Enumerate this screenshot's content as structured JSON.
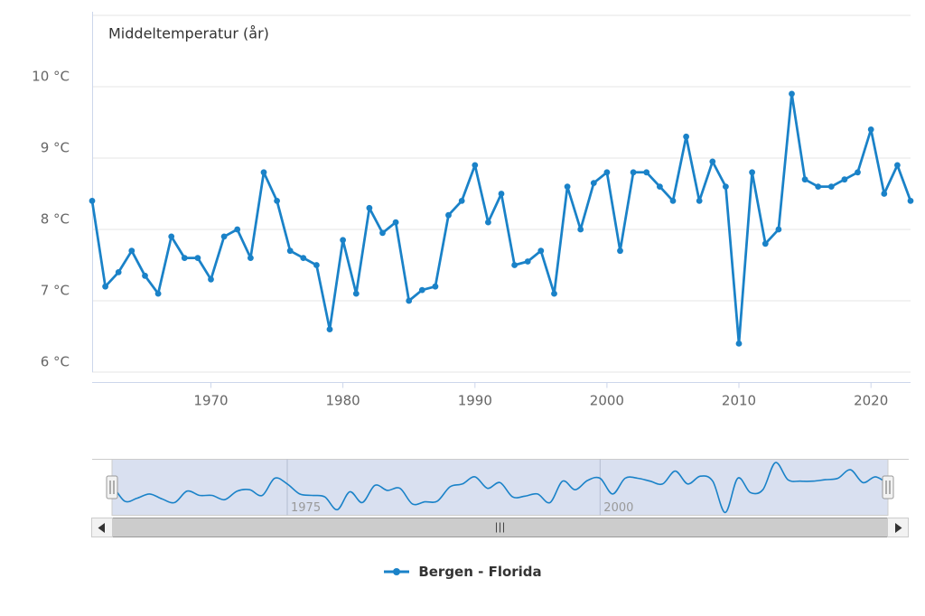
{
  "chart_data": {
    "type": "line",
    "title": "Middeltemperatur (år)",
    "xlabel": "",
    "ylabel": "",
    "xlim": [
      1961,
      2023
    ],
    "ylim": [
      6,
      11.05
    ],
    "grid": "horizontal",
    "legend_position": "bottom-center",
    "x": [
      1961,
      1962,
      1963,
      1964,
      1965,
      1966,
      1967,
      1968,
      1969,
      1970,
      1971,
      1972,
      1973,
      1974,
      1975,
      1976,
      1977,
      1978,
      1979,
      1980,
      1981,
      1982,
      1983,
      1984,
      1985,
      1986,
      1987,
      1988,
      1989,
      1990,
      1991,
      1992,
      1993,
      1994,
      1995,
      1996,
      1997,
      1998,
      1999,
      2000,
      2001,
      2002,
      2003,
      2004,
      2005,
      2006,
      2007,
      2008,
      2009,
      2010,
      2011,
      2012,
      2013,
      2014,
      2015,
      2016,
      2017,
      2018,
      2019,
      2020,
      2021,
      2022,
      2023
    ],
    "series": [
      {
        "name": "Bergen - Florida",
        "unit": "°C",
        "values": [
          8.4,
          7.2,
          7.4,
          7.7,
          7.35,
          7.1,
          7.9,
          7.6,
          7.6,
          7.3,
          7.9,
          8.0,
          7.6,
          8.8,
          8.4,
          7.7,
          7.6,
          7.5,
          6.6,
          7.85,
          7.1,
          8.3,
          7.95,
          8.1,
          7.0,
          7.15,
          7.2,
          8.2,
          8.4,
          8.9,
          8.1,
          8.5,
          7.5,
          7.55,
          7.7,
          7.1,
          8.6,
          8.0,
          8.65,
          8.8,
          7.7,
          8.8,
          8.8,
          8.6,
          8.4,
          9.3,
          8.4,
          8.95,
          8.6,
          6.4,
          8.8,
          7.8,
          8.0,
          9.9,
          8.7,
          8.6,
          8.6,
          8.7,
          8.8,
          9.4,
          8.5,
          8.9,
          8.4
        ]
      }
    ],
    "x_ticks": [
      {
        "value": 1970,
        "label": "1970"
      },
      {
        "value": 1980,
        "label": "1980"
      },
      {
        "value": 1990,
        "label": "1990"
      },
      {
        "value": 2000,
        "label": "2000"
      },
      {
        "value": 2010,
        "label": "2010"
      },
      {
        "value": 2020,
        "label": "2020"
      }
    ],
    "y_ticks": [
      {
        "value": 6,
        "label": "6 °C"
      },
      {
        "value": 7,
        "label": "7 °C"
      },
      {
        "value": 8,
        "label": "8 °C"
      },
      {
        "value": 9,
        "label": "9 °C"
      },
      {
        "value": 10,
        "label": "10 °C"
      },
      {
        "value": 11,
        "label": ""
      }
    ],
    "navigator": {
      "enabled": true,
      "ylim": [
        6.3,
        10.1
      ],
      "gridline_labels": [
        {
          "value": 1975,
          "label": "1975"
        },
        {
          "value": 2000,
          "label": "2000"
        }
      ]
    },
    "scrollbar": {
      "grip_icon": "three-vertical-bars",
      "left_icon": "triangle-left-arrow",
      "right_icon": "triangle-right-arrow",
      "handle_icon": "double-vertical-bars"
    }
  },
  "colors": {
    "series": "#1a82c8",
    "grid": "#e6e6e6",
    "axis_line": "#ccd6eb",
    "axis_label": "#666666",
    "title": "#333333",
    "navigator_mask": "rgba(102,133,194,0.25)",
    "navigator_outline": "#cccccc",
    "navigator_gridline": "#b4bdd0",
    "navigator_label": "#999999",
    "handle_fill": "#f2f2f2",
    "handle_stroke": "#999999",
    "handle_rifle": "#666666",
    "scrollbar_button": "#f2f2f2",
    "scrollbar_border": "#cccccc",
    "scrollbar_arrow": "#333333",
    "scrollbar_thumb": "#cccccc",
    "scrollbar_thumb_border": "#999999",
    "scrollbar_rifles": "#444444",
    "legend_text": "#333333"
  }
}
